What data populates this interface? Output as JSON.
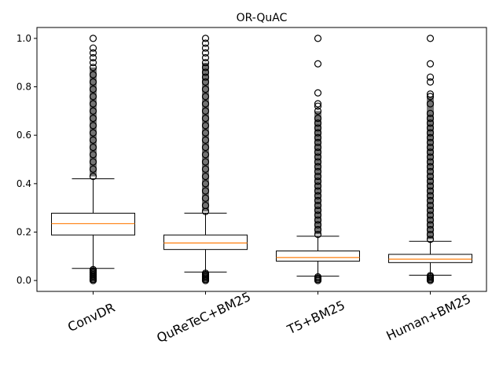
{
  "chart_data": {
    "type": "box",
    "title": "OR-QuAC",
    "xlabel": "",
    "ylabel": "",
    "ylim": [
      -0.045,
      1.045
    ],
    "yticks": [
      0.0,
      0.2,
      0.4,
      0.6,
      0.8,
      1.0
    ],
    "ytick_labels": [
      "0.0",
      "0.2",
      "0.4",
      "0.6",
      "0.8",
      "1.0"
    ],
    "categories": [
      "ConvDR",
      "QuReTeC+BM25",
      "T5+BM25",
      "Human+BM25"
    ],
    "grid": false,
    "colors": {
      "box": "#000000",
      "median": "#ff7f0e",
      "flier": "#000000"
    },
    "boxes": [
      {
        "name": "ConvDR",
        "whisker_low": 0.05,
        "q1": 0.188,
        "median": 0.235,
        "q3": 0.278,
        "whisker_high": 0.42,
        "fliers_low": [
          0.0,
          0.005,
          0.01,
          0.015,
          0.02,
          0.025,
          0.03,
          0.035,
          0.04,
          0.045
        ],
        "fliers_high": [
          0.43,
          0.46,
          0.49,
          0.52,
          0.55,
          0.58,
          0.61,
          0.64,
          0.67,
          0.7,
          0.73,
          0.76,
          0.79,
          0.82,
          0.85,
          0.88,
          0.9,
          0.92,
          0.94,
          0.96,
          1.0
        ]
      },
      {
        "name": "QuReTeC+BM25",
        "whisker_low": 0.035,
        "q1": 0.128,
        "median": 0.155,
        "q3": 0.188,
        "whisker_high": 0.278,
        "fliers_low": [
          0.0,
          0.005,
          0.01,
          0.015,
          0.02,
          0.025,
          0.03
        ],
        "fliers_high": [
          0.285,
          0.31,
          0.34,
          0.37,
          0.4,
          0.43,
          0.46,
          0.49,
          0.52,
          0.55,
          0.58,
          0.61,
          0.64,
          0.67,
          0.7,
          0.73,
          0.76,
          0.79,
          0.82,
          0.84,
          0.86,
          0.88,
          0.9,
          0.92,
          0.94,
          0.96,
          0.98,
          1.0
        ]
      },
      {
        "name": "T5+BM25",
        "whisker_low": 0.018,
        "q1": 0.08,
        "median": 0.095,
        "q3": 0.122,
        "whisker_high": 0.183,
        "fliers_low": [
          0.0,
          0.005,
          0.01,
          0.015
        ],
        "fliers_high": [
          0.19,
          0.21,
          0.23,
          0.25,
          0.27,
          0.29,
          0.31,
          0.33,
          0.35,
          0.37,
          0.39,
          0.41,
          0.43,
          0.45,
          0.47,
          0.49,
          0.51,
          0.53,
          0.55,
          0.57,
          0.59,
          0.61,
          0.63,
          0.65,
          0.67,
          0.7,
          0.72,
          0.73,
          0.775,
          0.895,
          1.0
        ]
      },
      {
        "name": "Human+BM25",
        "whisker_low": 0.022,
        "q1": 0.074,
        "median": 0.088,
        "q3": 0.108,
        "whisker_high": 0.162,
        "fliers_low": [
          0.0,
          0.005,
          0.01,
          0.015,
          0.02
        ],
        "fliers_high": [
          0.17,
          0.19,
          0.21,
          0.23,
          0.25,
          0.27,
          0.29,
          0.31,
          0.33,
          0.35,
          0.37,
          0.39,
          0.41,
          0.43,
          0.45,
          0.47,
          0.49,
          0.51,
          0.53,
          0.55,
          0.57,
          0.59,
          0.61,
          0.63,
          0.65,
          0.67,
          0.69,
          0.73,
          0.76,
          0.77,
          0.82,
          0.84,
          0.895,
          1.0
        ]
      }
    ]
  }
}
